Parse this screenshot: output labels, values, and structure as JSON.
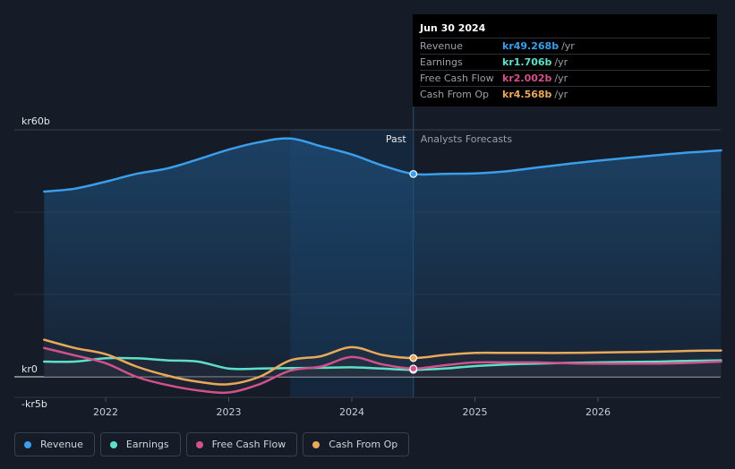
{
  "chart_data": {
    "type": "area",
    "title": "",
    "xlabel": "",
    "ylabel": "",
    "ylim": [
      -5,
      60
    ],
    "y_ticks": [
      {
        "value": 60,
        "label": "kr60b"
      },
      {
        "value": 0,
        "label": "kr0"
      },
      {
        "value": -5,
        "label": "-kr5b"
      }
    ],
    "x_ticks": [
      {
        "value": 2022,
        "label": "2022"
      },
      {
        "value": 2023,
        "label": "2023"
      },
      {
        "value": 2024,
        "label": "2024"
      },
      {
        "value": 2025,
        "label": "2025"
      },
      {
        "value": 2026,
        "label": "2026"
      }
    ],
    "xlim": [
      2021.25,
      2027.0
    ],
    "past_start": 2023.5,
    "forecast_start": 2024.5,
    "past_label": "Past",
    "forecast_label": "Analysts Forecasts",
    "series": [
      {
        "name": "Revenue",
        "color": "#3b9eea",
        "points": [
          [
            2021.5,
            45.0
          ],
          [
            2021.75,
            45.7
          ],
          [
            2022.0,
            47.4
          ],
          [
            2022.25,
            49.3
          ],
          [
            2022.5,
            50.6
          ],
          [
            2022.75,
            52.8
          ],
          [
            2023.0,
            55.2
          ],
          [
            2023.25,
            57.0
          ],
          [
            2023.5,
            57.9
          ],
          [
            2023.75,
            56.0
          ],
          [
            2024.0,
            54.0
          ],
          [
            2024.25,
            51.3
          ],
          [
            2024.5,
            49.268
          ],
          [
            2024.75,
            49.3
          ],
          [
            2025.0,
            49.4
          ],
          [
            2025.25,
            49.9
          ],
          [
            2025.5,
            50.8
          ],
          [
            2025.75,
            51.7
          ],
          [
            2026.0,
            52.5
          ],
          [
            2026.25,
            53.2
          ],
          [
            2026.5,
            53.9
          ],
          [
            2026.75,
            54.5
          ],
          [
            2027.0,
            55.0
          ]
        ]
      },
      {
        "name": "Earnings",
        "color": "#5ee0c8",
        "points": [
          [
            2021.5,
            3.7
          ],
          [
            2021.75,
            3.7
          ],
          [
            2022.0,
            4.5
          ],
          [
            2022.25,
            4.5
          ],
          [
            2022.5,
            4.0
          ],
          [
            2022.75,
            3.7
          ],
          [
            2023.0,
            2.0
          ],
          [
            2023.25,
            2.0
          ],
          [
            2023.5,
            2.1
          ],
          [
            2023.75,
            2.2
          ],
          [
            2024.0,
            2.3
          ],
          [
            2024.25,
            2.0
          ],
          [
            2024.5,
            1.706
          ],
          [
            2024.75,
            2.0
          ],
          [
            2025.0,
            2.6
          ],
          [
            2025.25,
            3.0
          ],
          [
            2025.5,
            3.2
          ],
          [
            2025.75,
            3.4
          ],
          [
            2026.0,
            3.5
          ],
          [
            2026.25,
            3.6
          ],
          [
            2026.5,
            3.7
          ],
          [
            2026.75,
            3.9
          ],
          [
            2027.0,
            4.0
          ]
        ]
      },
      {
        "name": "Free Cash Flow",
        "color": "#d0518c",
        "points": [
          [
            2021.5,
            7.0
          ],
          [
            2021.75,
            5.2
          ],
          [
            2022.0,
            3.3
          ],
          [
            2022.25,
            0.0
          ],
          [
            2022.5,
            -2.0
          ],
          [
            2022.75,
            -3.3
          ],
          [
            2023.0,
            -3.8
          ],
          [
            2023.25,
            -1.8
          ],
          [
            2023.5,
            1.5
          ],
          [
            2023.75,
            2.5
          ],
          [
            2024.0,
            4.8
          ],
          [
            2024.25,
            3.0
          ],
          [
            2024.5,
            2.002
          ],
          [
            2024.75,
            2.8
          ],
          [
            2025.0,
            3.5
          ],
          [
            2025.25,
            3.5
          ],
          [
            2025.5,
            3.5
          ],
          [
            2025.75,
            3.3
          ],
          [
            2026.0,
            3.2
          ],
          [
            2026.25,
            3.2
          ],
          [
            2026.5,
            3.2
          ],
          [
            2026.75,
            3.4
          ],
          [
            2027.0,
            3.7
          ]
        ]
      },
      {
        "name": "Cash From Op",
        "color": "#e8a95b",
        "points": [
          [
            2021.5,
            9.0
          ],
          [
            2021.75,
            7.0
          ],
          [
            2022.0,
            5.5
          ],
          [
            2022.25,
            2.5
          ],
          [
            2022.5,
            0.3
          ],
          [
            2022.75,
            -1.2
          ],
          [
            2023.0,
            -1.8
          ],
          [
            2023.25,
            0.0
          ],
          [
            2023.5,
            4.0
          ],
          [
            2023.75,
            5.0
          ],
          [
            2024.0,
            7.2
          ],
          [
            2024.25,
            5.3
          ],
          [
            2024.5,
            4.568
          ],
          [
            2024.75,
            5.3
          ],
          [
            2025.0,
            5.8
          ],
          [
            2025.25,
            5.8
          ],
          [
            2025.5,
            5.8
          ],
          [
            2025.75,
            5.8
          ],
          [
            2026.0,
            5.9
          ],
          [
            2026.25,
            6.0
          ],
          [
            2026.5,
            6.1
          ],
          [
            2026.75,
            6.3
          ],
          [
            2027.0,
            6.4
          ]
        ]
      }
    ]
  },
  "tooltip": {
    "date": "Jun 30 2024",
    "unit": "/yr",
    "rows": [
      {
        "name": "Revenue",
        "value": "kr49.268b",
        "color": "#3b9eea"
      },
      {
        "name": "Earnings",
        "value": "kr1.706b",
        "color": "#5ee0c8"
      },
      {
        "name": "Free Cash Flow",
        "value": "kr2.002b",
        "color": "#d0518c"
      },
      {
        "name": "Cash From Op",
        "value": "kr4.568b",
        "color": "#e8a95b"
      }
    ]
  },
  "legend": [
    {
      "label": "Revenue",
      "color": "#3b9eea"
    },
    {
      "label": "Earnings",
      "color": "#5ee0c8"
    },
    {
      "label": "Free Cash Flow",
      "color": "#d0518c"
    },
    {
      "label": "Cash From Op",
      "color": "#e8a95b"
    }
  ]
}
